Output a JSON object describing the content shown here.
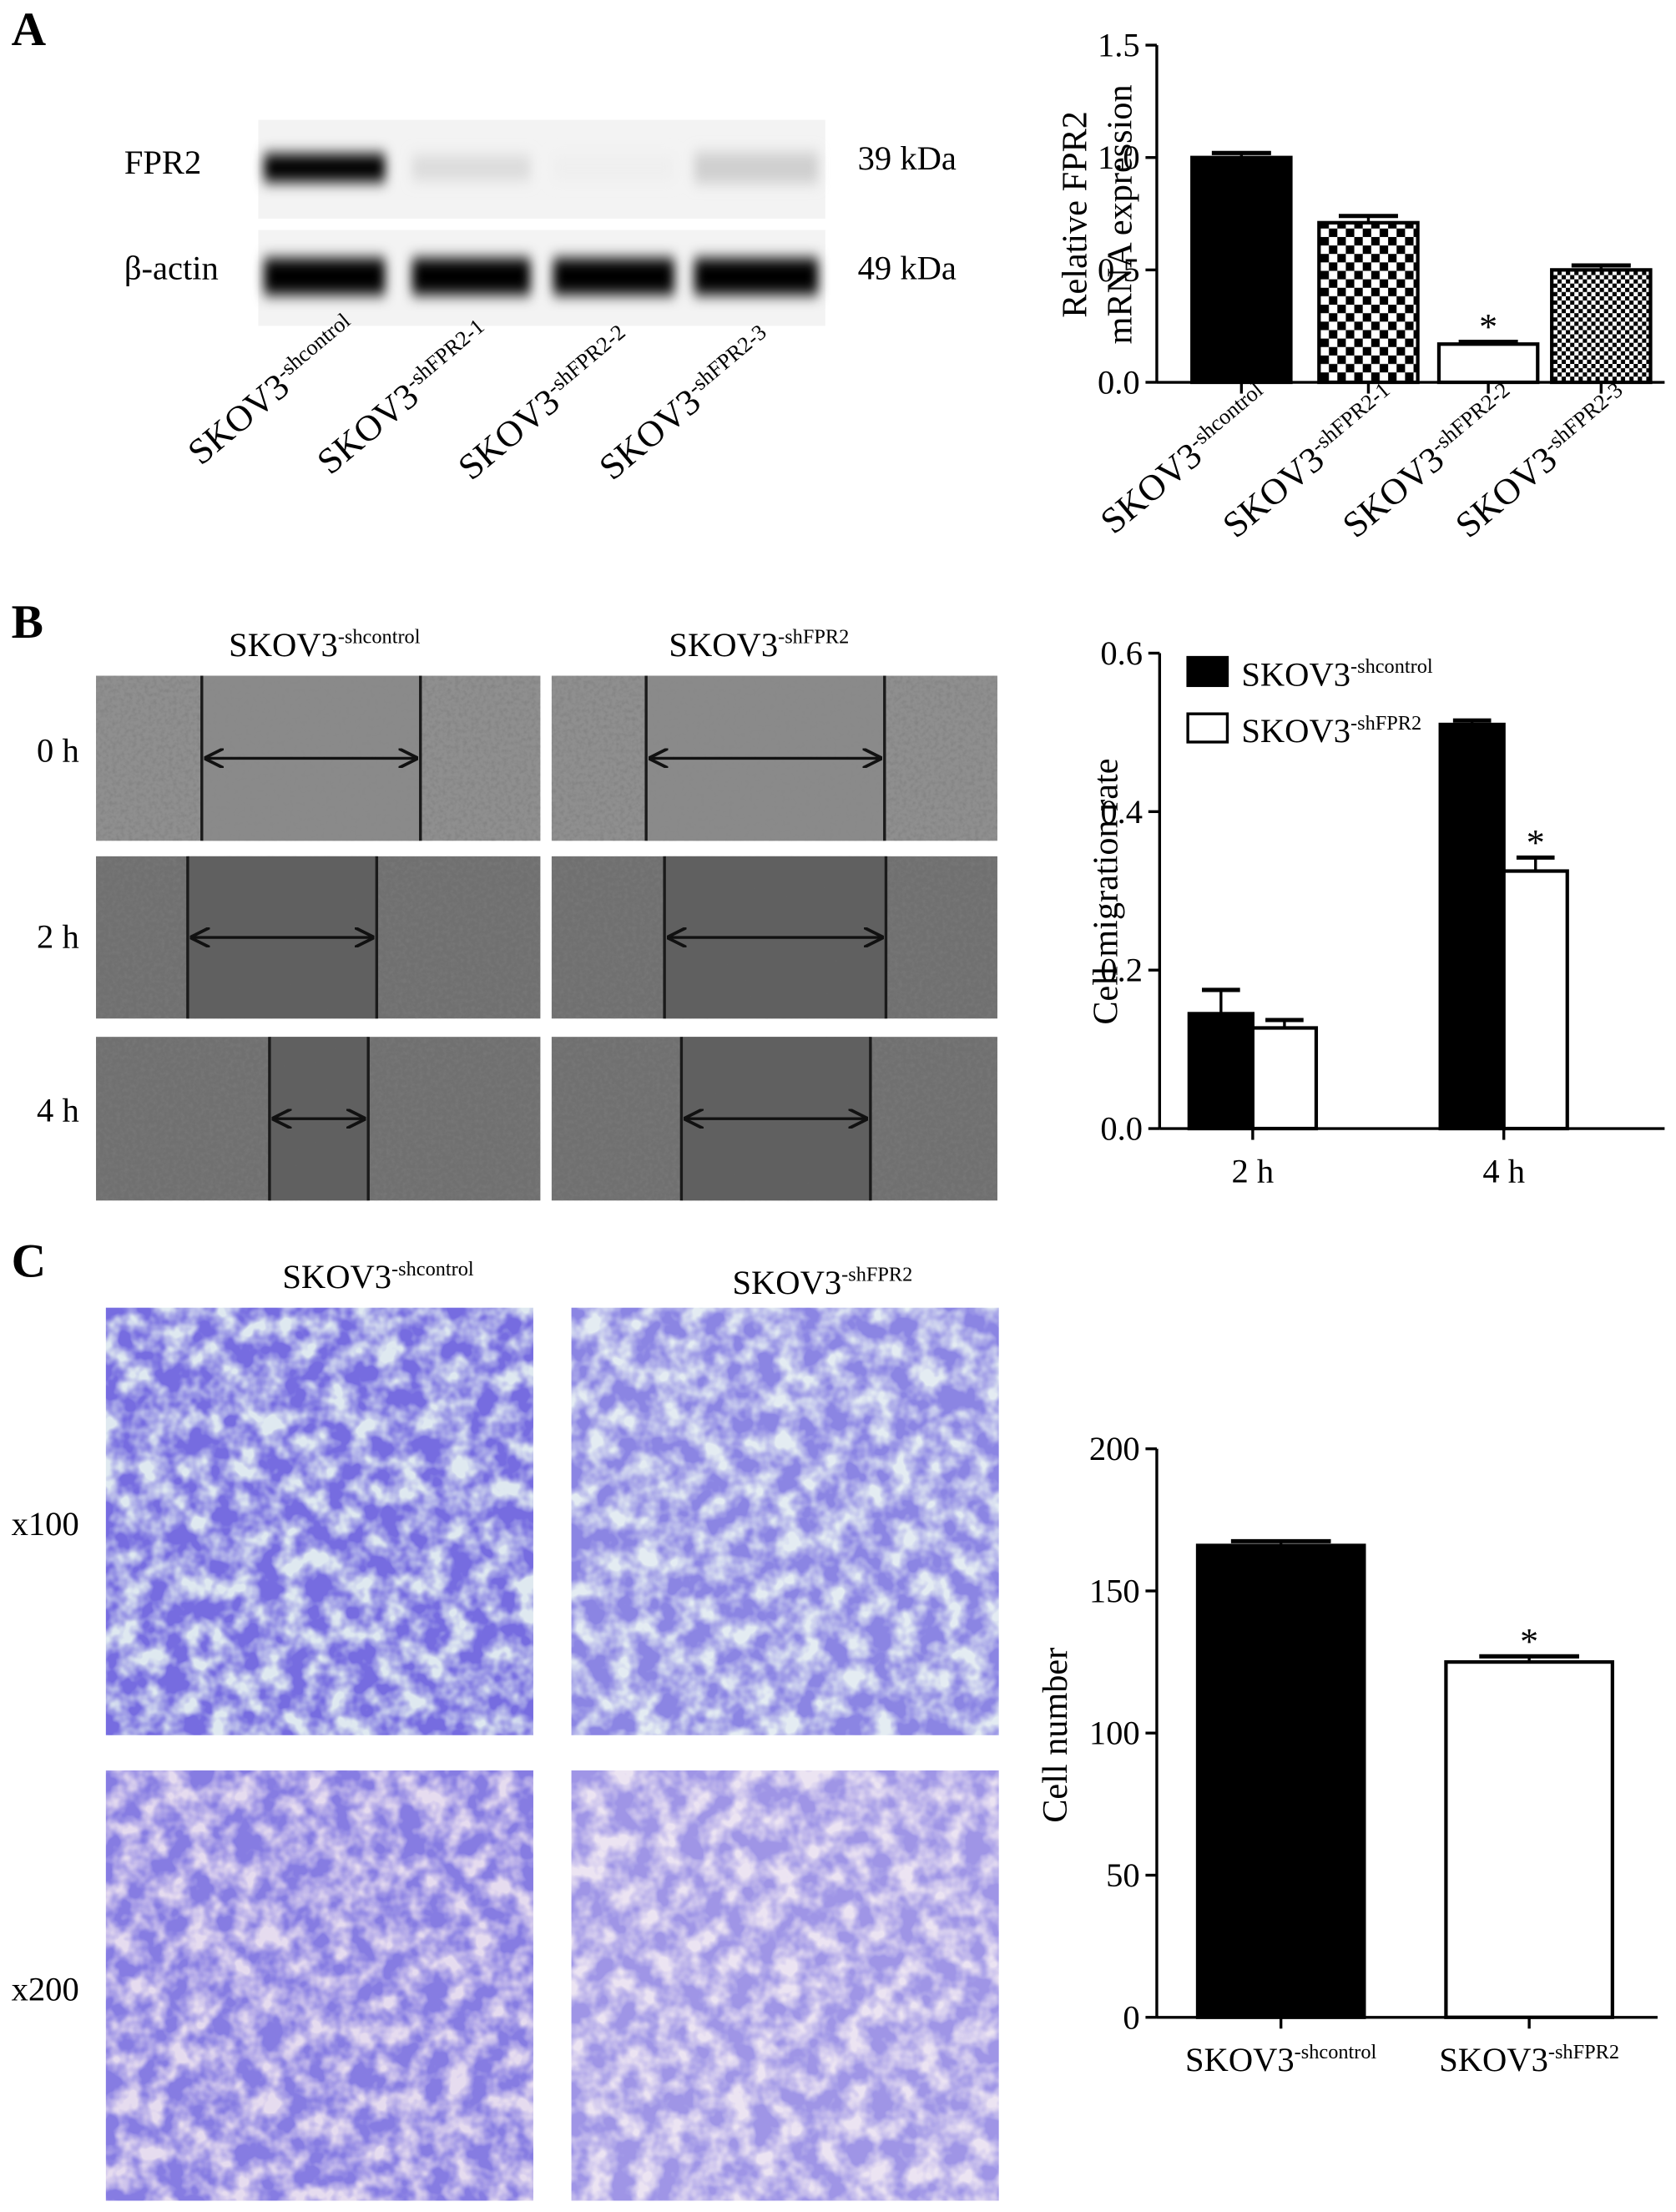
{
  "panel_labels": [
    "A",
    "B",
    "C"
  ],
  "blot": {
    "rows": [
      "FPR2",
      "β-actin"
    ],
    "sizes": [
      "39 kDa",
      "49 kDa"
    ],
    "lanes": [
      "SKOV3-shcontrol",
      "SKOV3-shFPR2-1",
      "SKOV3-shFPR2-2",
      "SKOV3-shFPR2-3"
    ]
  },
  "scratch": {
    "columns": [
      "SKOV3-shcontrol",
      "SKOV3-shFPR2"
    ],
    "rows": [
      "0 h",
      "2 h",
      "4 h"
    ]
  },
  "transwell": {
    "columns": [
      "SKOV3-shcontrol",
      "SKOV3-shFPR2"
    ],
    "rows": [
      "x100",
      "x200"
    ]
  },
  "chart_data": [
    {
      "type": "bar",
      "y_label": [
        "Relative FPR2",
        "mRNA expression"
      ],
      "categories": [
        "SKOV3-shcontrol",
        "SKOV3-shFPR2-1",
        "SKOV3-shFPR2-2",
        "SKOV3-shFPR2-3"
      ],
      "series": [
        {
          "values": [
            1.0,
            0.71,
            0.17,
            0.5
          ],
          "errors": [
            0.02,
            0.03,
            0.01,
            0.02
          ],
          "bar_fills": [
            "black",
            "checker",
            "white",
            "fine-checker"
          ],
          "significance": [
            null,
            null,
            "*",
            null
          ]
        }
      ],
      "ylim": [
        0,
        1.5
      ],
      "yticks": [
        {
          "value": 0,
          "label": "0.0"
        },
        0.5,
        {
          "value": 1,
          "label": "1.0"
        },
        1.5
      ]
    },
    {
      "type": "bar",
      "y_label": [
        "Cell migration rate"
      ],
      "categories": [
        "2 h",
        "4 h"
      ],
      "series": [
        {
          "name": "SKOV3-shcontrol",
          "color": "#000000",
          "values": [
            0.145,
            0.51
          ],
          "errors": [
            0.03,
            0.005
          ],
          "significance": [
            null,
            null
          ]
        },
        {
          "name": "SKOV3-shFPR2",
          "color": "#ffffff",
          "values": [
            0.127,
            0.325
          ],
          "errors": [
            0.01,
            0.017
          ],
          "significance": [
            null,
            "*"
          ]
        }
      ],
      "legend": "upper left",
      "ylim": [
        0,
        0.6
      ],
      "yticks": [
        {
          "value": 0,
          "label": "0.0"
        },
        0.2,
        0.4,
        0.6
      ]
    },
    {
      "type": "bar",
      "y_label": [
        "Cell number"
      ],
      "categories": [
        "SKOV3-shcontrol",
        "SKOV3-shFPR2"
      ],
      "series": [
        {
          "values": [
            166,
            125
          ],
          "errors": [
            1.5,
            2
          ],
          "bar_fills": [
            "black",
            "white"
          ],
          "significance": [
            null,
            "*"
          ]
        }
      ],
      "ylim": [
        0,
        200
      ],
      "yticks": [
        0,
        50,
        100,
        150,
        200
      ]
    }
  ]
}
